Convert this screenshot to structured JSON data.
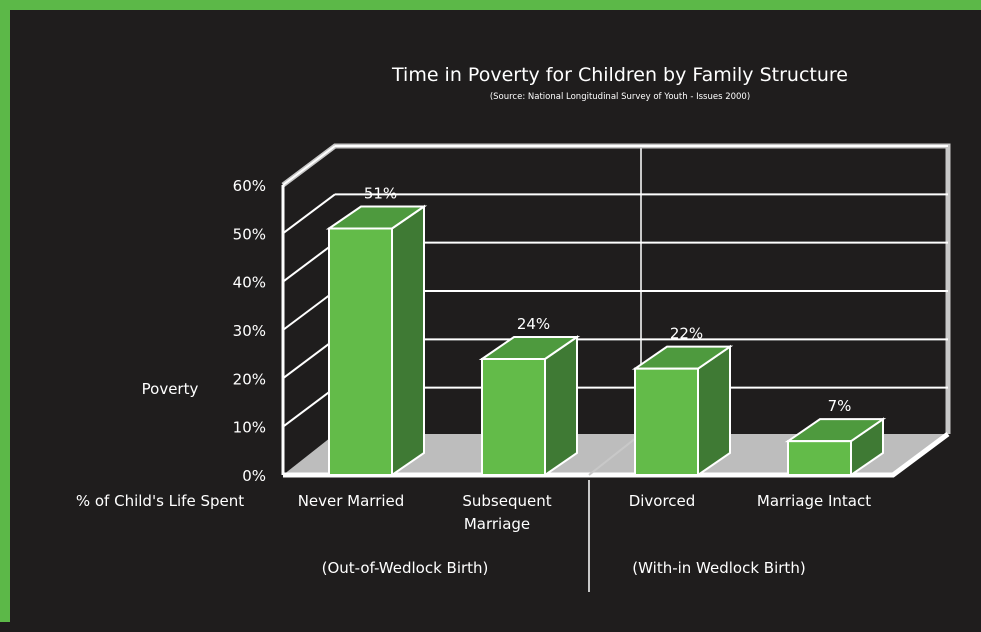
{
  "colors": {
    "border": "#5cb848",
    "background": "#1f1d1d",
    "bar_front": "#63bb49",
    "bar_side": "#3f7a34",
    "floor": "#bdbdbd",
    "text": "#ffffff"
  },
  "chart_data": {
    "type": "bar",
    "title": "Time in Poverty for Children by Family Structure",
    "subtitle": "(Source: National Longitudinal Survey of Youth - Issues 2000)",
    "ylabel_line1": "Poverty",
    "ylabel_line2": "% of Child's Life Spent",
    "yticks": [
      "0%",
      "10%",
      "20%",
      "30%",
      "40%",
      "50%",
      "60%"
    ],
    "ylim": [
      0,
      60
    ],
    "grid": true,
    "categories": [
      {
        "line1": "Never Married",
        "line2": ""
      },
      {
        "line1": "Subsequent",
        "line2": "Marriage"
      },
      {
        "line1": "Divorced",
        "line2": ""
      },
      {
        "line1": "Marriage Intact",
        "line2": ""
      }
    ],
    "values": [
      51,
      24,
      22,
      7
    ],
    "value_labels": [
      "51%",
      "24%",
      "22%",
      "7%"
    ],
    "groups": [
      "(Out-of-Wedlock Birth)",
      "(With-in Wedlock Birth)"
    ]
  }
}
